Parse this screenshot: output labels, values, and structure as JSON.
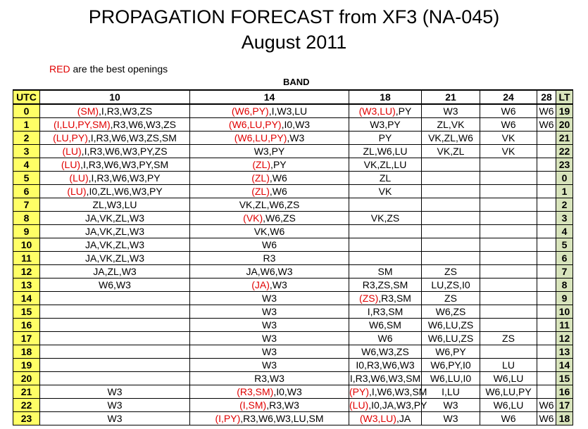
{
  "title_line1": "PROPAGATION FORECAST from XF3 (NA-045)",
  "title_line2": "August 2011",
  "note": {
    "red_word": "RED",
    "rest": " are the best openings"
  },
  "band_label": "BAND",
  "colors": {
    "accent_red": "#e00000",
    "utc_fill": "#ffff66",
    "lt_fill": "#d8e4bc"
  },
  "headers": [
    "UTC",
    "10",
    "14",
    "18",
    "21",
    "24",
    "28",
    "LT"
  ],
  "rows": [
    {
      "utc": "0",
      "b10": [
        [
          "r",
          "(SM)"
        ],
        [
          "",
          "I,R3,W3,ZS"
        ]
      ],
      "b14": [
        [
          "r",
          "(W6,PY)"
        ],
        [
          "",
          "I,W3,LU"
        ]
      ],
      "b18": [
        [
          "r",
          "(W3,LU)"
        ],
        [
          "",
          "PY"
        ]
      ],
      "b21": "W3",
      "b24": "W6",
      "b28": "W6",
      "lt": "19"
    },
    {
      "utc": "1",
      "b10": [
        [
          "r",
          "(I,LU,PY,SM)"
        ],
        [
          "",
          "R3,W6,W3,ZS"
        ]
      ],
      "b14": [
        [
          "r",
          "(W6,LU,PY)"
        ],
        [
          "",
          "I0,W3"
        ]
      ],
      "b18": [
        [
          "",
          "W3,PY"
        ]
      ],
      "b21": "ZL,VK",
      "b24": "W6",
      "b28": "W6",
      "lt": "20"
    },
    {
      "utc": "2",
      "b10": [
        [
          "r",
          "(LU,PY)"
        ],
        [
          "",
          "I,R3,W6,W3,ZS,SM"
        ]
      ],
      "b14": [
        [
          "r",
          "(W6,LU,PY)"
        ],
        [
          "",
          "W3"
        ]
      ],
      "b18": [
        [
          "",
          "PY"
        ]
      ],
      "b21": "VK,ZL,W6",
      "b24": "VK",
      "b28": "",
      "lt": "21"
    },
    {
      "utc": "3",
      "b10": [
        [
          "r",
          "(LU)"
        ],
        [
          "",
          "I,R3,W6,W3,PY,ZS"
        ]
      ],
      "b14": [
        [
          "",
          "W3,PY"
        ]
      ],
      "b18": [
        [
          "",
          "ZL,W6,LU"
        ]
      ],
      "b21": "VK,ZL",
      "b24": "VK",
      "b28": "",
      "lt": "22"
    },
    {
      "utc": "4",
      "b10": [
        [
          "r",
          "(LU)"
        ],
        [
          "",
          "I,R3,W6,W3,PY,SM"
        ]
      ],
      "b14": [
        [
          "r",
          "(ZL)"
        ],
        [
          "",
          "PY"
        ]
      ],
      "b18": [
        [
          "",
          "VK,ZL,LU"
        ]
      ],
      "b21": "",
      "b24": "",
      "b28": "",
      "lt": "23"
    },
    {
      "utc": "5",
      "b10": [
        [
          "r",
          "(LU)"
        ],
        [
          "",
          "I,R3,W6,W3,PY"
        ]
      ],
      "b14": [
        [
          "r",
          "(ZL)"
        ],
        [
          "",
          "W6"
        ]
      ],
      "b18": [
        [
          "",
          "ZL"
        ]
      ],
      "b21": "",
      "b24": "",
      "b28": "",
      "lt": "0"
    },
    {
      "utc": "6",
      "b10": [
        [
          "r",
          "(LU)"
        ],
        [
          "",
          "I0,ZL,W6,W3,PY"
        ]
      ],
      "b14": [
        [
          "r",
          "(ZL)"
        ],
        [
          "",
          "W6"
        ]
      ],
      "b18": [
        [
          "",
          "VK"
        ]
      ],
      "b21": "",
      "b24": "",
      "b28": "",
      "lt": "1"
    },
    {
      "utc": "7",
      "b10": [
        [
          "",
          "ZL,W3,LU"
        ]
      ],
      "b14": [
        [
          "",
          "VK,ZL,W6,ZS"
        ]
      ],
      "b18": [],
      "b21": "",
      "b24": "",
      "b28": "",
      "lt": "2"
    },
    {
      "utc": "8",
      "b10": [
        [
          "",
          "JA,VK,ZL,W3"
        ]
      ],
      "b14": [
        [
          "r",
          "(VK)"
        ],
        [
          "",
          "W6,ZS"
        ]
      ],
      "b18": [
        [
          "",
          "VK,ZS"
        ]
      ],
      "b21": "",
      "b24": "",
      "b28": "",
      "lt": "3"
    },
    {
      "utc": "9",
      "b10": [
        [
          "",
          "JA,VK,ZL,W3"
        ]
      ],
      "b14": [
        [
          "",
          "VK,W6"
        ]
      ],
      "b18": [],
      "b21": "",
      "b24": "",
      "b28": "",
      "lt": "4"
    },
    {
      "utc": "10",
      "b10": [
        [
          "",
          "JA,VK,ZL,W3"
        ]
      ],
      "b14": [
        [
          "",
          "W6"
        ]
      ],
      "b18": [],
      "b21": "",
      "b24": "",
      "b28": "",
      "lt": "5"
    },
    {
      "utc": "11",
      "b10": [
        [
          "",
          "JA,VK,ZL,W3"
        ]
      ],
      "b14": [
        [
          "",
          "R3"
        ]
      ],
      "b18": [],
      "b21": "",
      "b24": "",
      "b28": "",
      "lt": "6"
    },
    {
      "utc": "12",
      "b10": [
        [
          "",
          "JA,ZL,W3"
        ]
      ],
      "b14": [
        [
          "",
          "JA,W6,W3"
        ]
      ],
      "b18": [
        [
          "",
          "SM"
        ]
      ],
      "b21": "ZS",
      "b24": "",
      "b28": "",
      "lt": "7"
    },
    {
      "utc": "13",
      "b10": [
        [
          "",
          "W6,W3"
        ]
      ],
      "b14": [
        [
          "r",
          "(JA)"
        ],
        [
          "",
          "W3"
        ]
      ],
      "b18": [
        [
          "",
          "R3,ZS,SM"
        ]
      ],
      "b21": "LU,ZS,I0",
      "b24": "",
      "b28": "",
      "lt": "8"
    },
    {
      "utc": "14",
      "b10": [],
      "b14": [
        [
          "",
          "W3"
        ]
      ],
      "b18": [
        [
          "r",
          "(ZS)"
        ],
        [
          "",
          "R3,SM"
        ]
      ],
      "b21": "ZS",
      "b24": "",
      "b28": "",
      "lt": "9"
    },
    {
      "utc": "15",
      "b10": [],
      "b14": [
        [
          "",
          "W3"
        ]
      ],
      "b18": [
        [
          "",
          "I,R3,SM"
        ]
      ],
      "b21": "W6,ZS",
      "b24": "",
      "b28": "",
      "lt": "10"
    },
    {
      "utc": "16",
      "b10": [],
      "b14": [
        [
          "",
          "W3"
        ]
      ],
      "b18": [
        [
          "",
          "W6,SM"
        ]
      ],
      "b21": "W6,LU,ZS",
      "b24": "",
      "b28": "",
      "lt": "11"
    },
    {
      "utc": "17",
      "b10": [],
      "b14": [
        [
          "",
          "W3"
        ]
      ],
      "b18": [
        [
          "",
          "W6"
        ]
      ],
      "b21": "W6,LU,ZS",
      "b24": "ZS",
      "b28": "",
      "lt": "12"
    },
    {
      "utc": "18",
      "b10": [],
      "b14": [
        [
          "",
          "W3"
        ]
      ],
      "b18": [
        [
          "",
          "W6,W3,ZS"
        ]
      ],
      "b21": "W6,PY",
      "b24": "",
      "b28": "",
      "lt": "13"
    },
    {
      "utc": "19",
      "b10": [],
      "b14": [
        [
          "",
          "W3"
        ]
      ],
      "b18": [
        [
          "",
          "I0,R3,W6,W3"
        ]
      ],
      "b21": "W6,PY,I0",
      "b24": "LU",
      "b28": "",
      "lt": "14"
    },
    {
      "utc": "20",
      "b10": [],
      "b14": [
        [
          "",
          "R3,W3"
        ]
      ],
      "b18": [
        [
          "",
          "I,R3,W6,W3,SM"
        ]
      ],
      "b21": "W6,LU,I0",
      "b24": "W6,LU",
      "b28": "",
      "lt": "15"
    },
    {
      "utc": "21",
      "b10": [
        [
          "",
          "W3"
        ]
      ],
      "b14": [
        [
          "r",
          "(R3,SM)"
        ],
        [
          "",
          "I0,W3"
        ]
      ],
      "b18": [
        [
          "r",
          "(PY)"
        ],
        [
          "",
          "I,W6,W3,SM"
        ]
      ],
      "b21": "I,LU",
      "b24": "W6,LU,PY",
      "b28": "",
      "lt": "16"
    },
    {
      "utc": "22",
      "b10": [
        [
          "",
          "W3"
        ]
      ],
      "b14": [
        [
          "r",
          "(I,SM)"
        ],
        [
          "",
          "R3,W3"
        ]
      ],
      "b18": [
        [
          "r",
          "(LU)"
        ],
        [
          "",
          "I0,JA,W3,PY"
        ]
      ],
      "b21": "W3",
      "b24": "W6,LU",
      "b28": "W6",
      "lt": "17"
    },
    {
      "utc": "23",
      "b10": [
        [
          "",
          "W3"
        ]
      ],
      "b14": [
        [
          "r",
          "(I,PY)"
        ],
        [
          "",
          "R3,W6,W3,LU,SM"
        ]
      ],
      "b18": [
        [
          "r",
          "(W3,LU)"
        ],
        [
          "",
          "JA"
        ]
      ],
      "b21": "W3",
      "b24": "W6",
      "b28": "W6",
      "lt": "18"
    }
  ]
}
